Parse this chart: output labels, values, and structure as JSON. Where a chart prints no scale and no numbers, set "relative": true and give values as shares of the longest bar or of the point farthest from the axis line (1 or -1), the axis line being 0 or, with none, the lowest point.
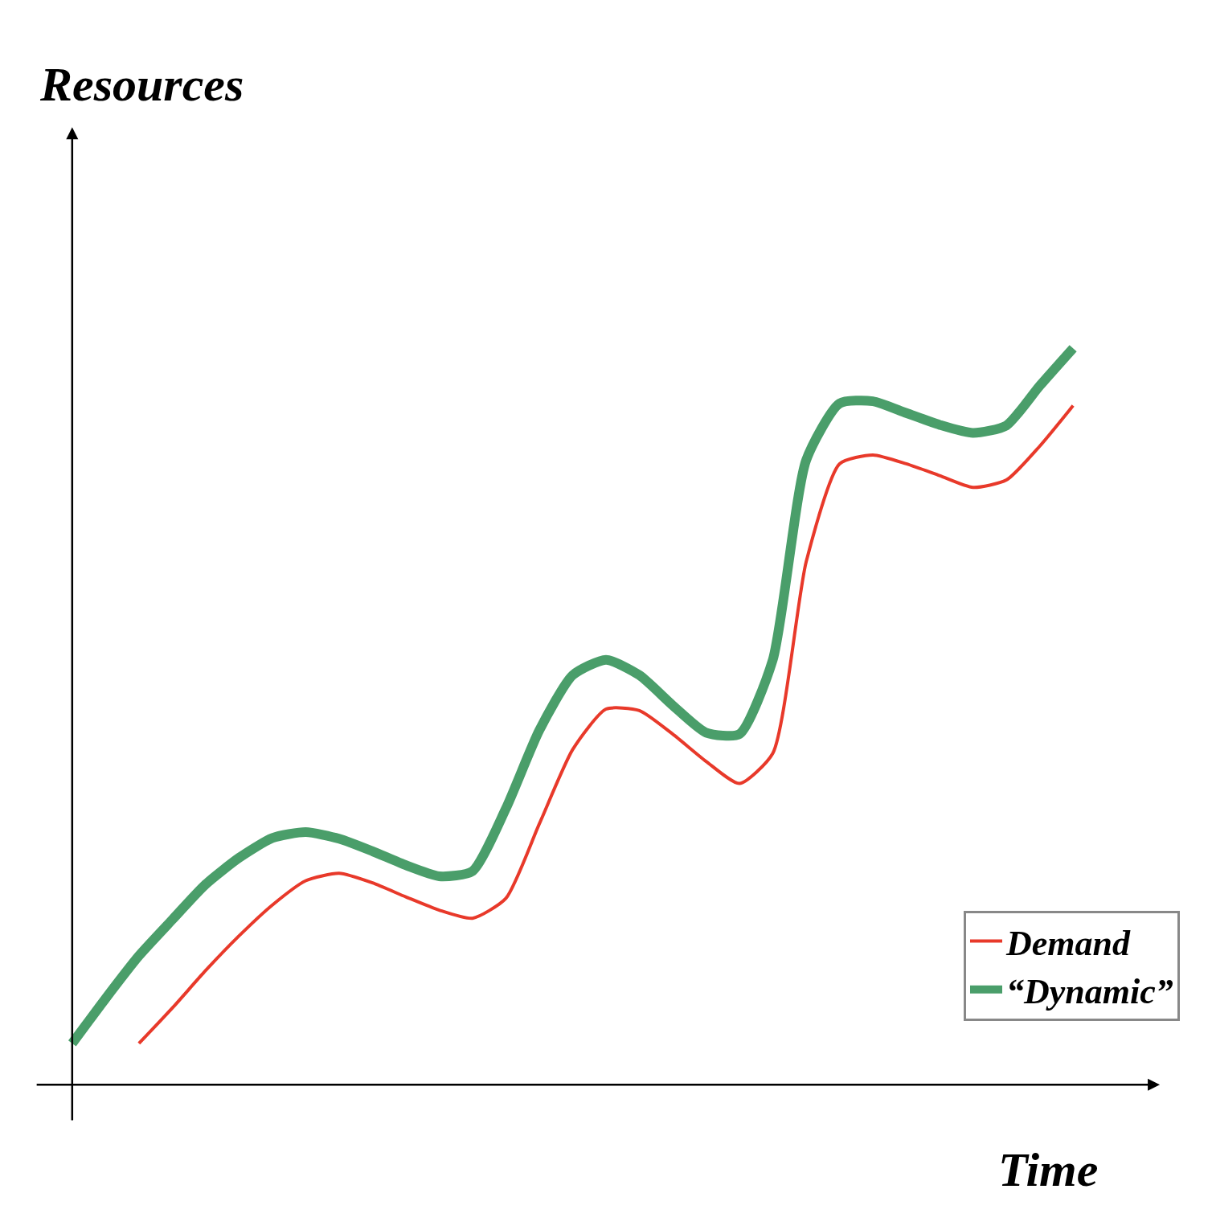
{
  "chart_data": {
    "type": "line",
    "relative": true,
    "xlabel": "Time",
    "ylabel": "Resources",
    "categories": [
      null,
      null,
      null,
      null,
      null,
      null,
      null,
      null,
      null,
      null,
      null,
      null,
      null,
      null,
      null,
      null,
      null,
      null,
      null,
      null,
      null,
      null,
      null,
      null,
      null,
      null,
      null,
      null,
      null,
      null,
      null
    ],
    "series": [
      {
        "name": "Demand",
        "color": "#e8392a",
        "values": [
          null,
          null,
          0.056,
          0.104,
          0.155,
          0.202,
          0.244,
          0.277,
          0.287,
          0.274,
          0.255,
          0.237,
          0.226,
          0.253,
          0.354,
          0.455,
          0.51,
          0.508,
          0.476,
          0.439,
          0.409,
          0.45,
          0.71,
          0.843,
          0.855,
          0.843,
          0.827,
          0.811,
          0.821,
          0.867,
          0.922
        ]
      },
      {
        "name": "“Dynamic”",
        "color": "#4a9e6a",
        "values": [
          0.056,
          0.117,
          0.175,
          0.224,
          0.272,
          0.308,
          0.335,
          0.343,
          0.334,
          0.317,
          0.298,
          0.283,
          0.29,
          0.375,
          0.481,
          0.556,
          0.577,
          0.556,
          0.515,
          0.478,
          0.476,
          0.577,
          0.848,
          0.925,
          0.928,
          0.912,
          0.896,
          0.885,
          0.895,
          0.949,
          1
        ]
      }
    ],
    "legend": "bottom right",
    "marker": "none",
    "line_style": "solid"
  }
}
